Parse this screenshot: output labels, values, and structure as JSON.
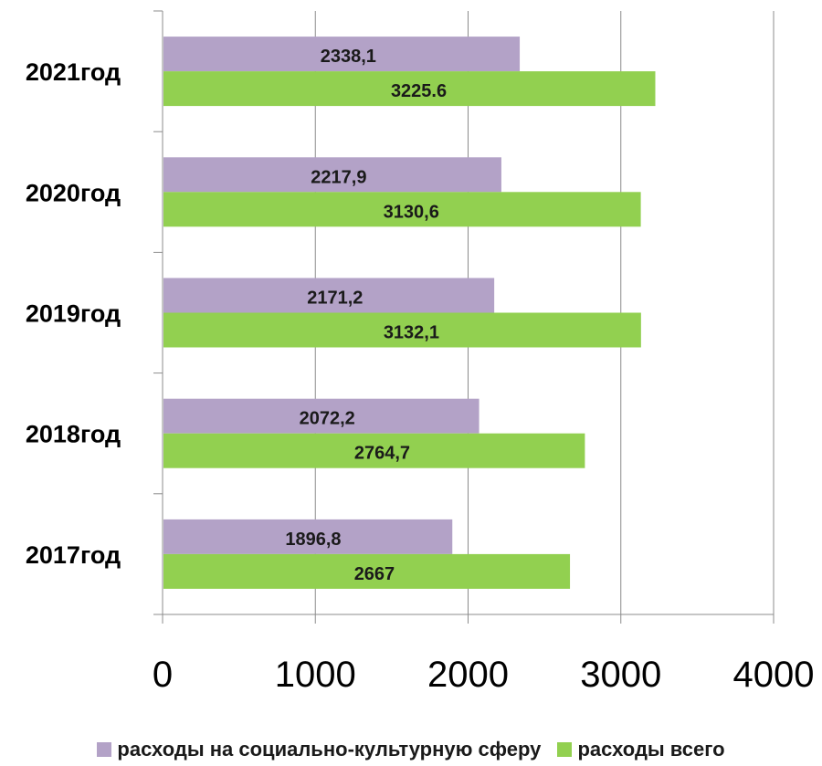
{
  "chart_data": {
    "type": "bar",
    "orientation": "horizontal",
    "categories": [
      "2017год",
      "2018год",
      "2019год",
      "2020год",
      "2021год"
    ],
    "series": [
      {
        "name": "расходы на социально-культурную сферу",
        "color": "#b3a2c7",
        "values": [
          1896.8,
          2072.2,
          2171.2,
          2217.9,
          2338.1
        ],
        "labels": [
          "1896,8",
          "2072,2",
          "2171,2",
          "2217,9",
          "2338,1"
        ]
      },
      {
        "name": "расходы всего",
        "color": "#92d050",
        "values": [
          2667,
          2764.7,
          3132.1,
          3130.6,
          3225.6
        ],
        "labels": [
          "2667",
          "2764,7",
          "3132,1",
          "3130,6",
          "3225.6"
        ]
      }
    ],
    "xlim": [
      0,
      4000
    ],
    "xticks": [
      "0",
      "1000",
      "2000",
      "3000",
      "4000"
    ],
    "grid": "vertical",
    "legend_position": "bottom"
  }
}
